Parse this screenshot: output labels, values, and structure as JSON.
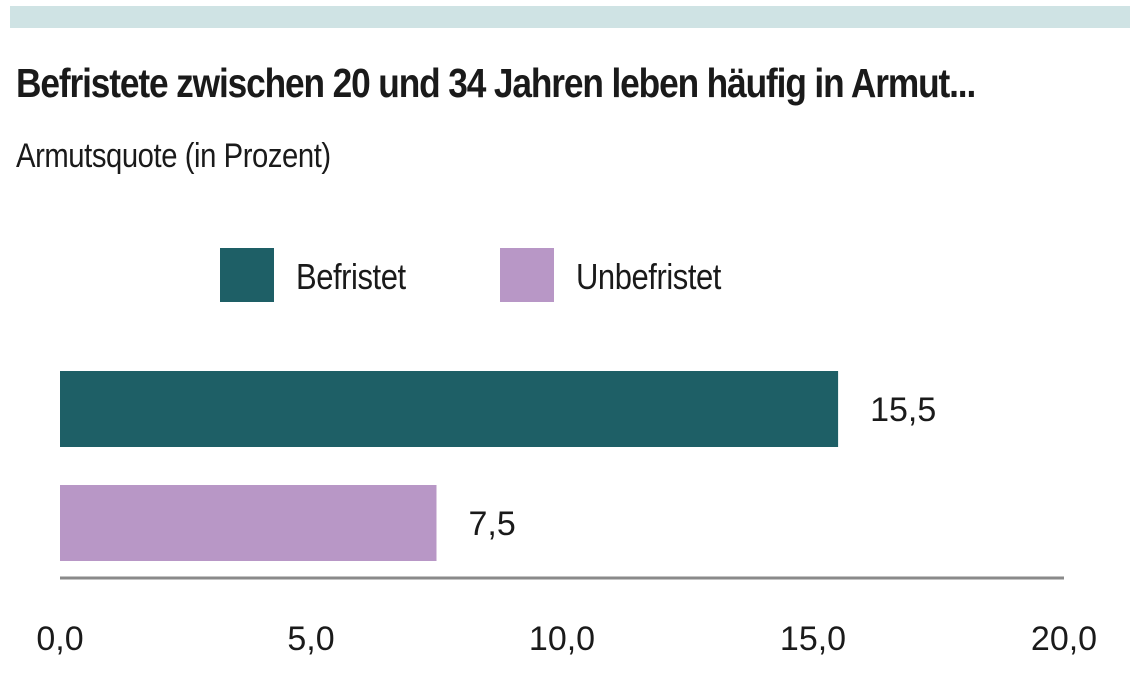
{
  "chart_data": {
    "type": "bar",
    "orientation": "horizontal",
    "title": "Befristete zwischen 20 und 34 Jahren leben häufig in Armut...",
    "subtitle": "Armutsquote (in Prozent)",
    "categories": [
      "Befristet",
      "Unbefristet"
    ],
    "values": [
      15.5,
      7.5
    ],
    "value_labels": [
      "15,5",
      "7,5"
    ],
    "colors": [
      "#1e5f66",
      "#b897c6"
    ],
    "xlim": [
      0,
      20
    ],
    "xticks": [
      0,
      5,
      10,
      15,
      20
    ],
    "xtick_labels": [
      "0,0",
      "5,0",
      "10,0",
      "15,0",
      "20,0"
    ],
    "legend": {
      "position": "top",
      "entries": [
        {
          "label": "Befristet",
          "color": "#1e5f66"
        },
        {
          "label": "Unbefristet",
          "color": "#b897c6"
        }
      ]
    },
    "grid": false,
    "baseline_color": "#8a8a8a",
    "header_band_color": "#cfe3e4"
  }
}
